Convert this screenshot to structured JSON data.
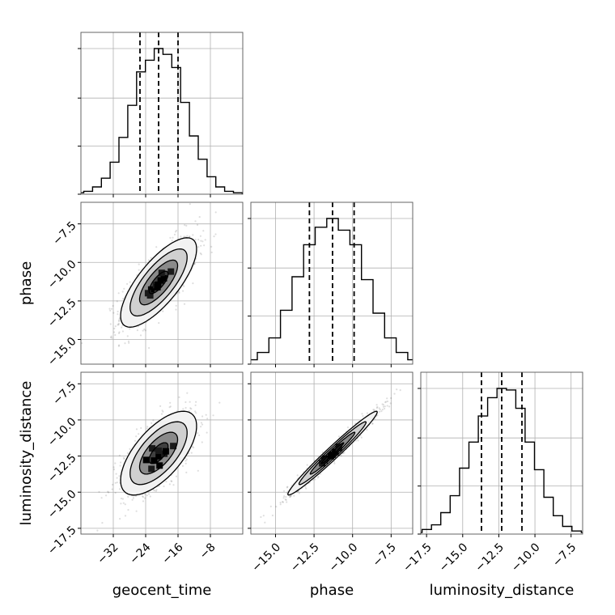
{
  "chart_data": {
    "type": "corner",
    "parameters": [
      "geocent_time",
      "phase",
      "luminosity_distance"
    ],
    "axis_labels": {
      "geocent_time": "geocent_time",
      "phase": "phase",
      "luminosity_distance": "luminosity_distance"
    },
    "ranges": {
      "geocent_time": [
        -40,
        0
      ],
      "phase": [
        -16.6,
        -6.1
      ],
      "luminosity_distance": [
        -17.9,
        -6.7
      ]
    },
    "ticks": {
      "geocent_time": {
        "values": [
          -32,
          -24,
          -16,
          -8
        ],
        "labels": [
          "−32",
          "−24",
          "−16",
          "−8"
        ]
      },
      "phase": {
        "values": [
          -15.0,
          -12.5,
          -10.0,
          -7.5
        ],
        "labels": [
          "−15.0",
          "−12.5",
          "−10.0",
          "−7.5"
        ]
      },
      "luminosity_distance": {
        "values": [
          -17.5,
          -15.0,
          -12.5,
          -10.0,
          -7.5
        ],
        "labels": [
          "−17.5",
          "−15.0",
          "−12.5",
          "−10.0",
          "−7.5"
        ]
      }
    },
    "marginals": [
      {
        "parameter": "geocent_time",
        "quantiles": [
          -25.4,
          -20.8,
          -16.0
        ],
        "counts": [
          1,
          2,
          5,
          11,
          22,
          39,
          61,
          84,
          92,
          100,
          96,
          87,
          63,
          40,
          24,
          12,
          5,
          2,
          1
        ]
      },
      {
        "parameter": "phase",
        "quantiles": [
          -12.8,
          -11.3,
          -9.9
        ],
        "counts": [
          1,
          3,
          8,
          18,
          37,
          60,
          82,
          94,
          100,
          92,
          82,
          58,
          35,
          18,
          8,
          3,
          1
        ]
      },
      {
        "parameter": "luminosity_distance",
        "quantiles": [
          -13.7,
          -12.3,
          -10.9
        ],
        "counts": [
          1,
          3,
          6,
          14,
          25,
          43,
          60,
          77,
          89,
          95,
          94,
          82,
          60,
          42,
          24,
          12,
          5,
          2,
          1
        ]
      }
    ],
    "joint": [
      {
        "x": "geocent_time",
        "y": "phase",
        "x_mean": -20.8,
        "y_mean": -11.3,
        "x_sd": 4.7,
        "y_sd": 1.45,
        "correlation": 0.75
      },
      {
        "x": "geocent_time",
        "y": "luminosity_distance",
        "x_mean": -20.8,
        "y_mean": -12.3,
        "x_sd": 4.7,
        "y_sd": 1.45,
        "correlation": 0.65
      },
      {
        "x": "phase",
        "y": "luminosity_distance",
        "x_mean": -11.3,
        "y_mean": -12.3,
        "x_sd": 1.45,
        "y_sd": 1.45,
        "correlation": 0.98
      }
    ],
    "quantile_levels": [
      0.16,
      0.5,
      0.84
    ],
    "grid": true
  }
}
